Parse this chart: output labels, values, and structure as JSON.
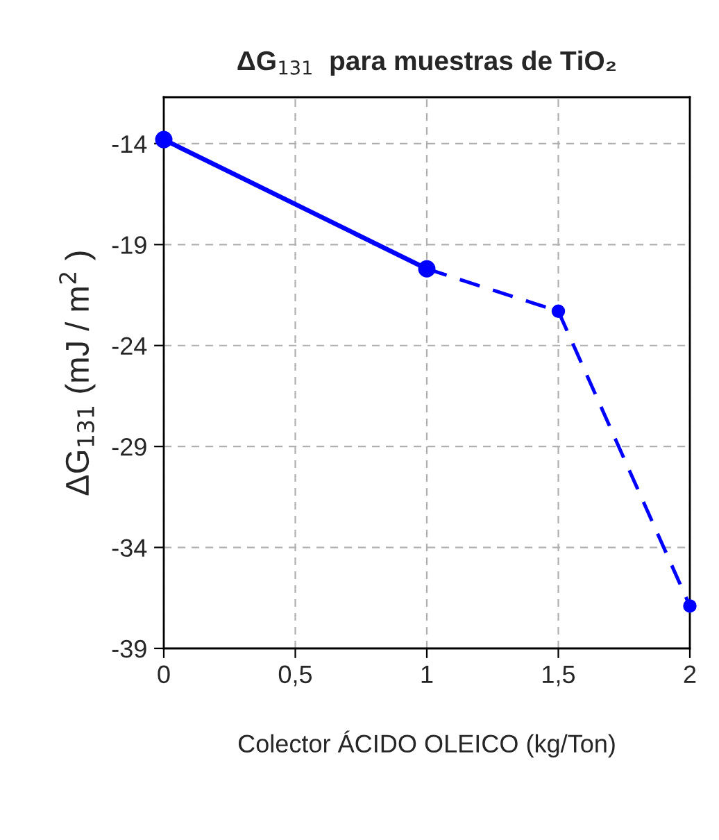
{
  "chart_data": {
    "type": "line",
    "title": "ΔG$_{131}$  para muestras de TiO₂",
    "xlabel": "Colector ÁCIDO OLEICO (kg/Ton)",
    "ylabel": "ΔG$_{131}$ (mJ / m$^{2}$ )",
    "series": [
      {
        "color": "#0000ff",
        "line_style": "solid",
        "x": [
          0,
          1
        ],
        "values": [
          -13.8,
          -20.2
        ]
      },
      {
        "color": "#0000ff",
        "line_style": "dashed",
        "x": [
          1,
          1.5,
          2
        ],
        "values": [
          -20.2,
          -22.3,
          -36.9
        ]
      }
    ],
    "xlim": [
      0,
      2
    ],
    "xticks": [
      0,
      {
        "value": 0.5,
        "label": "0,5"
      },
      1,
      {
        "value": 1.5,
        "label": "1,5"
      },
      2
    ],
    "ylim": [
      -39,
      -11.7
    ],
    "yticks": [
      -39,
      -34,
      -29,
      -24,
      -19,
      -14
    ],
    "grid": true,
    "marker": "circle"
  }
}
